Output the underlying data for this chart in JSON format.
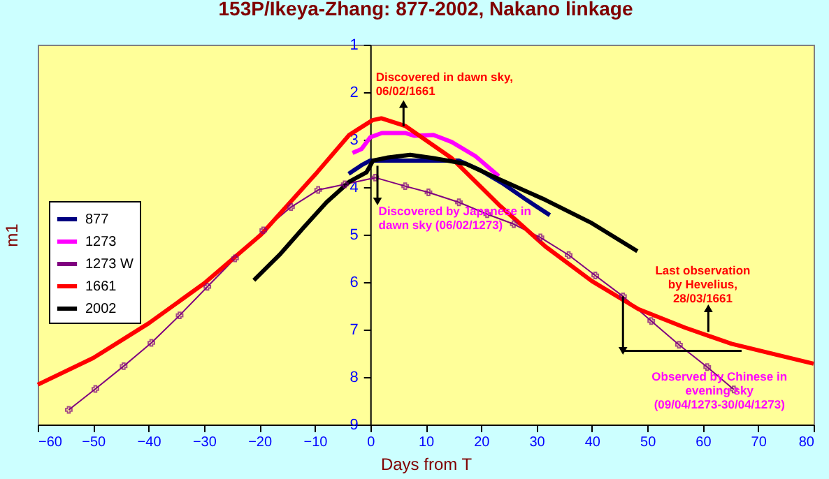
{
  "chart_data": {
    "type": "line",
    "title": "153P/Ikeya-Zhang: 877-2002, Nakano linkage",
    "xlabel": "Days from T",
    "ylabel": "m1",
    "xlim": [
      -60,
      80
    ],
    "xticks": [
      -60,
      -50,
      -40,
      -30,
      -20,
      -10,
      0,
      10,
      20,
      30,
      40,
      50,
      60,
      70,
      80
    ],
    "ylim": [
      9,
      1
    ],
    "yticks": [
      1,
      2,
      3,
      4,
      5,
      6,
      7,
      8,
      9
    ],
    "grid": false,
    "legend": "left",
    "series": [
      {
        "name": "877",
        "color": "#000080",
        "x": [
          -3.9,
          -1.6,
          0,
          8.9,
          16,
          19.8,
          24,
          28.2,
          32.4
        ],
        "values": [
          3.72,
          3.54,
          3.44,
          3.44,
          3.44,
          3.64,
          3.93,
          4.27,
          4.59
        ]
      },
      {
        "name": "1273",
        "color": "#ff00ff",
        "x": [
          -3.2,
          -1.6,
          0,
          2.1,
          6.3,
          8,
          11.4,
          14.7,
          19,
          23.2
        ],
        "values": [
          3.28,
          3.2,
          2.95,
          2.86,
          2.86,
          2.92,
          2.9,
          3.05,
          3.35,
          3.77
        ]
      },
      {
        "name": "1273 W",
        "color": "#800080",
        "marker": "cross",
        "x": [
          -54.4,
          -49.6,
          -44.5,
          -39.5,
          -34.4,
          -29.4,
          -24.4,
          -19.3,
          -14.3,
          -9.4,
          -4.6,
          0.9,
          6.3,
          10.5,
          16,
          21.1,
          25.9,
          30.7,
          35.8,
          40.6,
          45.6,
          50.7,
          55.7,
          60.8,
          65.6
        ],
        "values": [
          8.69,
          8.25,
          7.77,
          7.28,
          6.7,
          6.1,
          5.5,
          4.91,
          4.42,
          4.06,
          3.94,
          3.8,
          3.98,
          4.11,
          4.32,
          4.57,
          4.78,
          5.06,
          5.43,
          5.86,
          6.3,
          6.82,
          7.32,
          7.79,
          8.26
        ]
      },
      {
        "name": "1661",
        "color": "#ff0000",
        "x": [
          -60,
          -50,
          -40,
          -30,
          -19.7,
          -9.6,
          -3.8,
          0.4,
          2,
          6.3,
          14.7,
          23.2,
          31.6,
          40,
          48.4,
          56.8,
          65.2,
          80
        ],
        "values": [
          8.16,
          7.6,
          6.87,
          6.03,
          5,
          3.69,
          2.9,
          2.59,
          2.55,
          2.71,
          3.39,
          4.37,
          5.25,
          5.98,
          6.57,
          6.96,
          7.3,
          7.72
        ]
      },
      {
        "name": "2002",
        "color": "#000000",
        "x": [
          -21,
          -16.4,
          -12.1,
          -7.9,
          -3.7,
          -0.7,
          0.5,
          3,
          7.2,
          11.4,
          17.3,
          23.2,
          31.6,
          40,
          48.2
        ],
        "values": [
          5.96,
          5.43,
          4.86,
          4.32,
          3.88,
          3.69,
          3.44,
          3.38,
          3.32,
          3.39,
          3.51,
          3.83,
          4.27,
          4.76,
          5.35
        ]
      }
    ],
    "annotations": [
      {
        "text": "Discovered in dawn sky,\n06/02/1661",
        "x": 6,
        "y": 2.72
      },
      {
        "text": "Discovered by Japanese in\ndawn sky (06/02/1273)",
        "x": 1.3,
        "y": 3.55
      },
      {
        "text": "Last observation\nby Hevelius,\n28/03/1661",
        "x": 61,
        "y": 7.05
      },
      {
        "text": "Observed by Chinese in\nevening sky\n(09/04/1273-30/04/1273)",
        "x": 60.8,
        "y": 7.79
      }
    ]
  }
}
